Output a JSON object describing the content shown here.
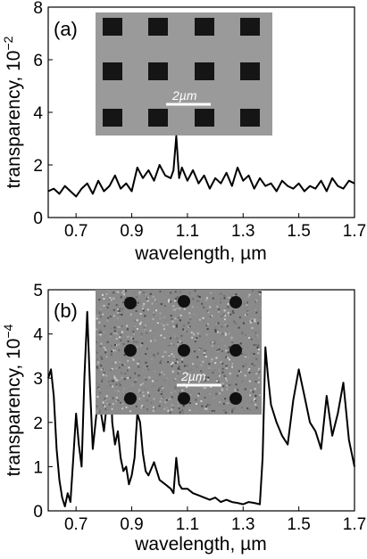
{
  "chart_data": [
    {
      "panel": "(a)",
      "type": "line",
      "ylabel": "transparency, 10",
      "yexp": "−2",
      "xlabel": "wavelength, µm",
      "xlim": [
        0.6,
        1.7
      ],
      "ylim": [
        0,
        8
      ],
      "xticks": [
        "0.7",
        "0.9",
        "1.1",
        "1.3",
        "1.5",
        "1.7"
      ],
      "yticks": [
        "0",
        "2",
        "4",
        "6",
        "8"
      ],
      "inset_scale_label": "2µm",
      "series": [
        {
          "x": [
            0.6,
            0.62,
            0.64,
            0.66,
            0.68,
            0.7,
            0.72,
            0.74,
            0.76,
            0.78,
            0.8,
            0.82,
            0.84,
            0.86,
            0.88,
            0.9,
            0.92,
            0.94,
            0.96,
            0.98,
            1.0,
            1.02,
            1.04,
            1.05,
            1.06,
            1.07,
            1.08,
            1.1,
            1.12,
            1.14,
            1.16,
            1.18,
            1.2,
            1.22,
            1.24,
            1.26,
            1.28,
            1.3,
            1.32,
            1.34,
            1.36,
            1.38,
            1.4,
            1.42,
            1.44,
            1.46,
            1.48,
            1.5,
            1.52,
            1.54,
            1.56,
            1.58,
            1.6,
            1.62,
            1.64,
            1.66,
            1.68,
            1.7
          ],
          "y": [
            1.0,
            1.1,
            0.9,
            1.2,
            1.0,
            0.8,
            1.1,
            1.3,
            0.9,
            1.4,
            1.0,
            1.2,
            1.6,
            1.1,
            1.3,
            1.0,
            1.9,
            1.5,
            1.8,
            1.4,
            2.0,
            1.6,
            1.5,
            1.8,
            3.1,
            1.5,
            1.9,
            1.4,
            1.8,
            1.3,
            1.6,
            1.1,
            1.5,
            1.3,
            1.7,
            1.2,
            1.9,
            1.4,
            1.6,
            1.1,
            1.5,
            1.2,
            1.3,
            1.0,
            1.4,
            1.2,
            1.1,
            1.3,
            1.0,
            1.2,
            1.1,
            1.4,
            1.0,
            1.5,
            1.2,
            1.1,
            1.4,
            1.3
          ]
        }
      ]
    },
    {
      "panel": "(b)",
      "type": "line",
      "ylabel": "transparency, 10",
      "yexp": "−4",
      "xlabel": "wavelength, µm",
      "xlim": [
        0.6,
        1.7
      ],
      "ylim": [
        0,
        5
      ],
      "xticks": [
        "0.7",
        "0.9",
        "1.1",
        "1.3",
        "1.5",
        "1.7"
      ],
      "yticks": [
        "0",
        "1",
        "2",
        "3",
        "4",
        "5"
      ],
      "inset_scale_label": "2µm",
      "series": [
        {
          "x": [
            0.6,
            0.61,
            0.62,
            0.63,
            0.64,
            0.65,
            0.66,
            0.67,
            0.68,
            0.69,
            0.7,
            0.71,
            0.72,
            0.73,
            0.74,
            0.75,
            0.76,
            0.77,
            0.78,
            0.79,
            0.8,
            0.81,
            0.82,
            0.83,
            0.84,
            0.85,
            0.86,
            0.87,
            0.88,
            0.89,
            0.9,
            0.91,
            0.92,
            0.93,
            0.94,
            0.95,
            0.96,
            0.98,
            1.0,
            1.02,
            1.04,
            1.05,
            1.06,
            1.07,
            1.08,
            1.1,
            1.12,
            1.14,
            1.16,
            1.18,
            1.2,
            1.22,
            1.24,
            1.26,
            1.28,
            1.3,
            1.32,
            1.34,
            1.36,
            1.37,
            1.38,
            1.39,
            1.4,
            1.42,
            1.44,
            1.46,
            1.48,
            1.5,
            1.52,
            1.54,
            1.56,
            1.58,
            1.6,
            1.62,
            1.64,
            1.66,
            1.68,
            1.7
          ],
          "y": [
            3.0,
            3.2,
            2.6,
            1.4,
            0.7,
            0.3,
            0.1,
            0.4,
            0.2,
            1.2,
            2.2,
            1.5,
            1.0,
            3.0,
            4.5,
            2.8,
            1.4,
            2.0,
            2.6,
            2.2,
            1.8,
            2.4,
            3.8,
            2.0,
            1.5,
            1.8,
            1.2,
            0.9,
            1.0,
            0.6,
            0.8,
            1.2,
            2.2,
            2.0,
            1.3,
            0.9,
            0.8,
            1.1,
            0.7,
            0.6,
            0.5,
            0.4,
            1.2,
            0.6,
            0.5,
            0.5,
            0.4,
            0.35,
            0.3,
            0.25,
            0.3,
            0.2,
            0.25,
            0.2,
            0.18,
            0.15,
            0.2,
            0.18,
            0.15,
            1.2,
            3.7,
            3.0,
            2.4,
            2.0,
            1.7,
            1.5,
            2.5,
            3.2,
            2.6,
            2.0,
            1.8,
            1.4,
            2.6,
            1.7,
            2.2,
            2.9,
            1.6,
            1.0
          ]
        }
      ]
    }
  ]
}
